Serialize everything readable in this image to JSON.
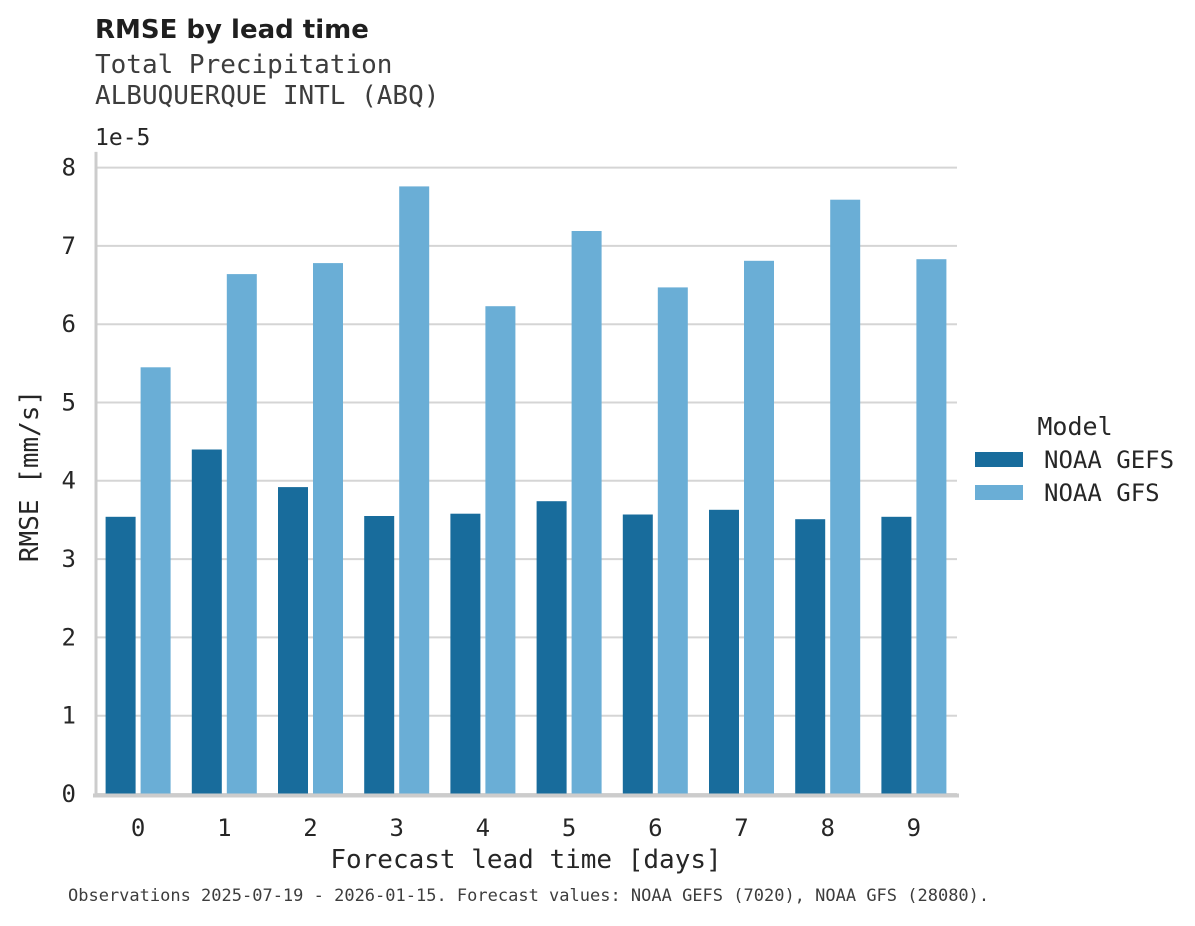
{
  "figure": {
    "title": "RMSE by lead time",
    "subtitle": "Total Precipitation",
    "station": "ALBUQUERQUE INTL (ABQ)",
    "caption": "Observations 2025-07-19 - 2026-01-15. Forecast values: NOAA GEFS (7020), NOAA GFS (28080)."
  },
  "chart_data": {
    "type": "bar",
    "title": "RMSE by lead time",
    "subtitle": [
      "Total Precipitation",
      "ALBUQUERQUE INTL (ABQ)"
    ],
    "xlabel": "Forecast lead time [days]",
    "ylabel": "RMSE [mm/s]",
    "y_offset_text": "1e-5",
    "value_units": "1e-5 mm/s",
    "categories": [
      "0",
      "1",
      "2",
      "3",
      "4",
      "5",
      "6",
      "7",
      "8",
      "9"
    ],
    "yticks": [
      0,
      1,
      2,
      3,
      4,
      5,
      6,
      7,
      8
    ],
    "ylim": [
      0,
      8.2
    ],
    "grid": true,
    "legend": {
      "title": "Model",
      "position": "right"
    },
    "series": [
      {
        "name": "NOAA GEFS",
        "color": "#186c9c",
        "values": [
          3.54,
          4.4,
          3.92,
          3.55,
          3.58,
          3.74,
          3.57,
          3.63,
          3.51,
          3.54
        ]
      },
      {
        "name": "NOAA GFS",
        "color": "#6aaed6",
        "values": [
          5.45,
          6.64,
          6.78,
          7.76,
          6.23,
          7.19,
          6.47,
          6.81,
          7.59,
          6.83
        ]
      }
    ],
    "axis_colors": {
      "grid": "#d5d5d5",
      "spine": "#cccccc",
      "text": "#262626"
    }
  }
}
